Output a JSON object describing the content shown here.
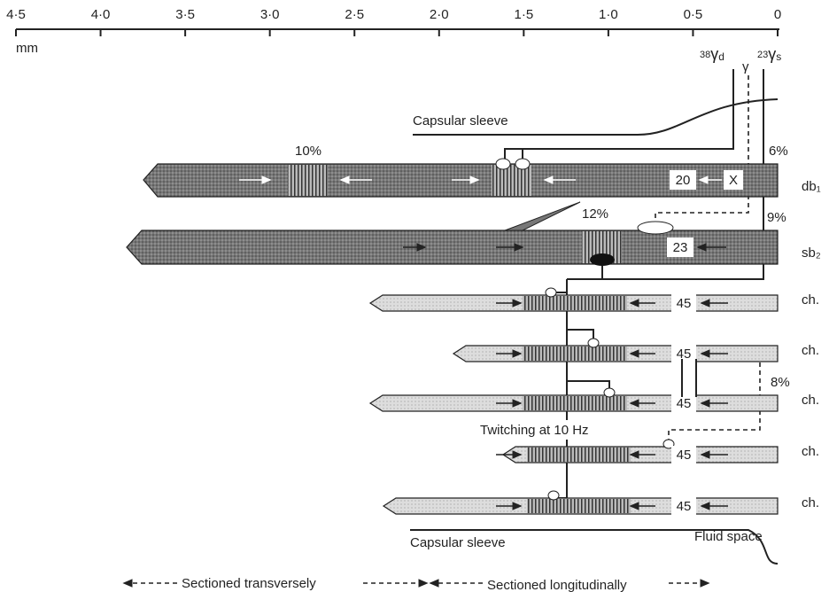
{
  "scale": {
    "unit": "mm",
    "ticks": [
      "4·5",
      "4·0",
      "3·5",
      "3·0",
      "2·5",
      "2·0",
      "1·5",
      "1·0",
      "0·5",
      "0"
    ]
  },
  "nerves": {
    "gamma_d": {
      "pre": "38",
      "sym": "γ",
      "sub": "d"
    },
    "gamma": "γ",
    "gamma_s": {
      "pre": "23",
      "sym": "γ",
      "sub": "s"
    }
  },
  "capsular_sleeve_top": "Capsular sleeve",
  "capsular_sleeve_bottom": "Capsular sleeve",
  "fluid_space": "Fluid space",
  "fibres": [
    {
      "name": "db₁",
      "pole_pct": "10%",
      "end_pct": "6%",
      "box_1": "20",
      "box_2": "X"
    },
    {
      "name": "sb₂",
      "mid_pct": "12%",
      "end_pct": "9%",
      "box_1": "23"
    },
    {
      "name": "ch.",
      "box_1": "45"
    },
    {
      "name": "ch.",
      "box_1": "45"
    },
    {
      "name": "ch.",
      "box_1": "45",
      "pct": "8%"
    },
    {
      "name": "ch.",
      "box_1": "45"
    },
    {
      "name": "ch.",
      "box_1": "45"
    }
  ],
  "twitching": "Twitching at 10 Hz",
  "sections": {
    "transverse": "Sectioned transversely",
    "longitudinal": "Sectioned longitudinally"
  }
}
